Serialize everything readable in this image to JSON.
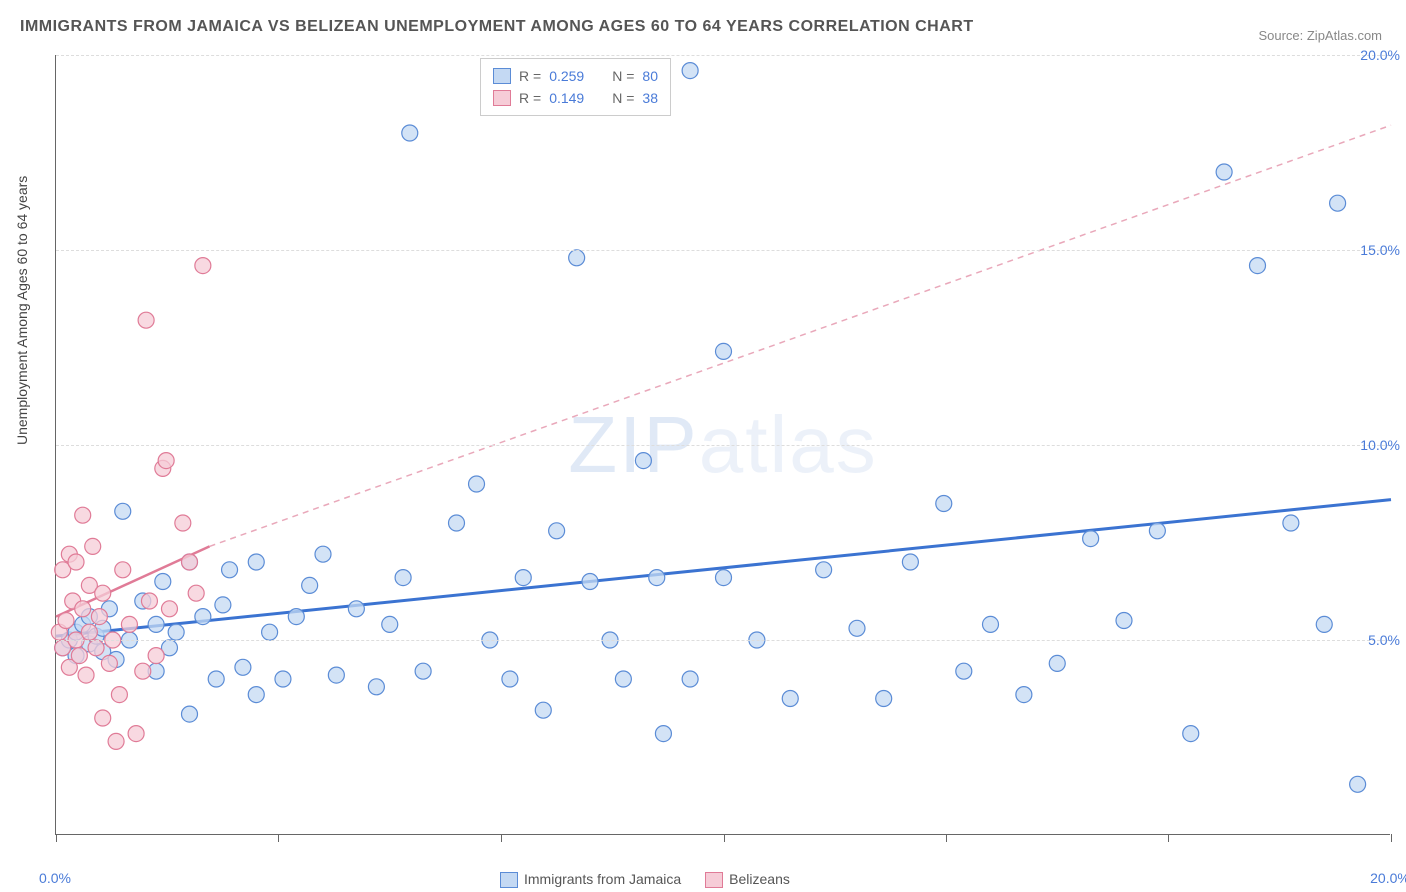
{
  "title": "IMMIGRANTS FROM JAMAICA VS BELIZEAN UNEMPLOYMENT AMONG AGES 60 TO 64 YEARS CORRELATION CHART",
  "source": "Source: ZipAtlas.com",
  "watermark_a": "ZIP",
  "watermark_b": "atlas",
  "yaxis_label": "Unemployment Among Ages 60 to 64 years",
  "chart": {
    "type": "scatter",
    "xlim": [
      0,
      20
    ],
    "ylim": [
      0,
      20
    ],
    "xtick_labels": [
      "0.0%",
      "20.0%"
    ],
    "xtick_positions": [
      0,
      20
    ],
    "ytick_labels": [
      "5.0%",
      "10.0%",
      "15.0%",
      "20.0%"
    ],
    "ytick_positions": [
      5,
      10,
      15,
      20
    ],
    "vtick_positions": [
      0,
      3.33,
      6.66,
      10,
      13.33,
      16.66,
      20
    ],
    "grid_color": "#dddddd",
    "axis_color": "#666666",
    "background_color": "#ffffff",
    "marker_radius": 8,
    "marker_stroke_width": 1.2,
    "label_fontsize": 14,
    "tick_color": "#4a7bd8",
    "series": [
      {
        "id": "jamaica",
        "label": "Immigrants from Jamaica",
        "fill": "#c4d9f3",
        "stroke": "#5b8cd6",
        "R": "0.259",
        "N": "80",
        "trend": {
          "x1": 0,
          "y1": 5.1,
          "x2": 20,
          "y2": 8.6,
          "dash": "none",
          "width": 3,
          "color": "#3b73d1"
        },
        "points": [
          [
            0.1,
            4.8
          ],
          [
            0.2,
            5.0
          ],
          [
            0.3,
            5.2
          ],
          [
            0.3,
            4.6
          ],
          [
            0.4,
            5.4
          ],
          [
            0.5,
            4.9
          ],
          [
            0.5,
            5.6
          ],
          [
            0.6,
            5.1
          ],
          [
            0.7,
            4.7
          ],
          [
            0.7,
            5.3
          ],
          [
            0.8,
            5.8
          ],
          [
            0.9,
            4.5
          ],
          [
            1.0,
            8.3
          ],
          [
            1.1,
            5.0
          ],
          [
            1.3,
            6.0
          ],
          [
            1.5,
            4.2
          ],
          [
            1.5,
            5.4
          ],
          [
            1.6,
            6.5
          ],
          [
            1.7,
            4.8
          ],
          [
            1.8,
            5.2
          ],
          [
            2.0,
            7.0
          ],
          [
            2.0,
            3.1
          ],
          [
            2.2,
            5.6
          ],
          [
            2.4,
            4.0
          ],
          [
            2.5,
            5.9
          ],
          [
            2.6,
            6.8
          ],
          [
            2.8,
            4.3
          ],
          [
            3.0,
            7.0
          ],
          [
            3.0,
            3.6
          ],
          [
            3.2,
            5.2
          ],
          [
            3.4,
            4.0
          ],
          [
            3.6,
            5.6
          ],
          [
            3.8,
            6.4
          ],
          [
            4.0,
            7.2
          ],
          [
            4.2,
            4.1
          ],
          [
            4.5,
            5.8
          ],
          [
            4.8,
            3.8
          ],
          [
            5.0,
            5.4
          ],
          [
            5.2,
            6.6
          ],
          [
            5.3,
            18.0
          ],
          [
            5.5,
            4.2
          ],
          [
            6.0,
            8.0
          ],
          [
            6.3,
            9.0
          ],
          [
            6.5,
            5.0
          ],
          [
            6.8,
            4.0
          ],
          [
            7.0,
            6.6
          ],
          [
            7.3,
            3.2
          ],
          [
            7.5,
            7.8
          ],
          [
            7.8,
            14.8
          ],
          [
            8.0,
            6.5
          ],
          [
            8.3,
            5.0
          ],
          [
            8.5,
            4.0
          ],
          [
            8.8,
            9.6
          ],
          [
            9.0,
            6.6
          ],
          [
            9.1,
            2.6
          ],
          [
            9.5,
            19.6
          ],
          [
            9.5,
            4.0
          ],
          [
            10.0,
            6.6
          ],
          [
            10.0,
            12.4
          ],
          [
            10.5,
            5.0
          ],
          [
            11.0,
            3.5
          ],
          [
            11.5,
            6.8
          ],
          [
            12.0,
            5.3
          ],
          [
            12.4,
            3.5
          ],
          [
            12.8,
            7.0
          ],
          [
            13.3,
            8.5
          ],
          [
            13.6,
            4.2
          ],
          [
            14.0,
            5.4
          ],
          [
            14.5,
            3.6
          ],
          [
            15.0,
            4.4
          ],
          [
            15.5,
            7.6
          ],
          [
            16.0,
            5.5
          ],
          [
            16.5,
            7.8
          ],
          [
            17.0,
            2.6
          ],
          [
            17.5,
            17.0
          ],
          [
            18.0,
            14.6
          ],
          [
            18.5,
            8.0
          ],
          [
            19.0,
            5.4
          ],
          [
            19.2,
            16.2
          ],
          [
            19.5,
            1.3
          ]
        ]
      },
      {
        "id": "belizeans",
        "label": "Belizeans",
        "fill": "#f6ccd7",
        "stroke": "#e07b97",
        "R": "0.149",
        "N": "38",
        "trend": {
          "x1": 0,
          "y1": 5.6,
          "x2": 2.3,
          "y2": 7.4,
          "dash": "none",
          "width": 2.5,
          "color": "#e07b97"
        },
        "trend_ext": {
          "x1": 2.3,
          "y1": 7.4,
          "x2": 20,
          "y2": 18.2,
          "dash": "6,5",
          "width": 1.5,
          "color": "#e9a8ba"
        },
        "points": [
          [
            0.05,
            5.2
          ],
          [
            0.1,
            4.8
          ],
          [
            0.1,
            6.8
          ],
          [
            0.15,
            5.5
          ],
          [
            0.2,
            7.2
          ],
          [
            0.2,
            4.3
          ],
          [
            0.25,
            6.0
          ],
          [
            0.3,
            5.0
          ],
          [
            0.3,
            7.0
          ],
          [
            0.35,
            4.6
          ],
          [
            0.4,
            5.8
          ],
          [
            0.4,
            8.2
          ],
          [
            0.45,
            4.1
          ],
          [
            0.5,
            6.4
          ],
          [
            0.5,
            5.2
          ],
          [
            0.55,
            7.4
          ],
          [
            0.6,
            4.8
          ],
          [
            0.65,
            5.6
          ],
          [
            0.7,
            3.0
          ],
          [
            0.7,
            6.2
          ],
          [
            0.8,
            4.4
          ],
          [
            0.85,
            5.0
          ],
          [
            0.9,
            2.4
          ],
          [
            0.95,
            3.6
          ],
          [
            1.0,
            6.8
          ],
          [
            1.1,
            5.4
          ],
          [
            1.2,
            2.6
          ],
          [
            1.3,
            4.2
          ],
          [
            1.35,
            13.2
          ],
          [
            1.4,
            6.0
          ],
          [
            1.5,
            4.6
          ],
          [
            1.6,
            9.4
          ],
          [
            1.65,
            9.6
          ],
          [
            1.7,
            5.8
          ],
          [
            1.9,
            8.0
          ],
          [
            2.0,
            7.0
          ],
          [
            2.1,
            6.2
          ],
          [
            2.2,
            14.6
          ]
        ]
      }
    ]
  },
  "legend_top": {
    "r_label": "R =",
    "n_label": "N ="
  },
  "legend_bottom": {
    "items": [
      "Immigrants from Jamaica",
      "Belizeans"
    ]
  }
}
